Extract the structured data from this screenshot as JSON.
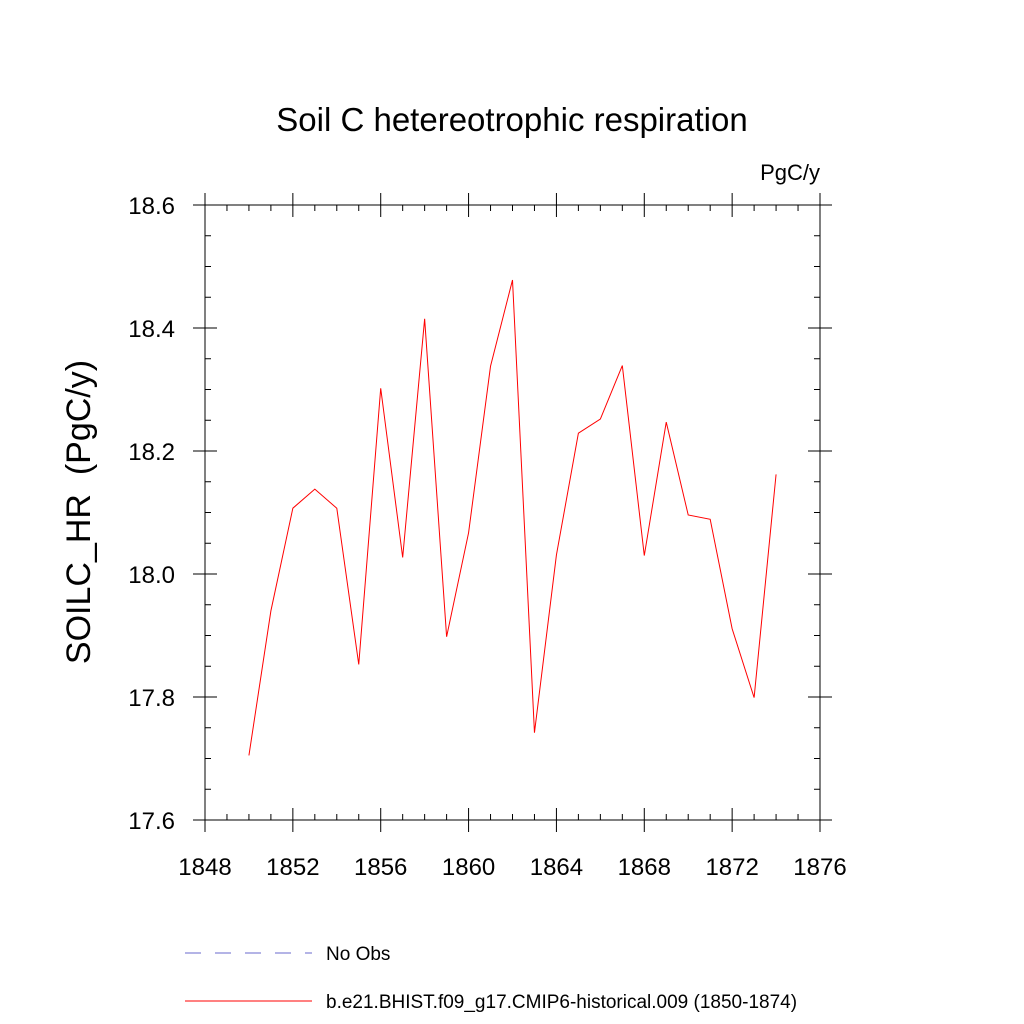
{
  "chart_data": {
    "type": "line",
    "title": "Soil C hetereotrophic respiration",
    "units": "PgC/y",
    "xlabel": "",
    "ylabel": "SOILC_HR  (PgC/y)",
    "xlim": [
      1848,
      1876
    ],
    "ylim": [
      17.6,
      18.6
    ],
    "x_ticks": [
      1848,
      1852,
      1856,
      1860,
      1864,
      1868,
      1872,
      1876
    ],
    "x_tick_labels": [
      "1848",
      "1852",
      "1856",
      "1860",
      "1864",
      "1868",
      "1872",
      "1876"
    ],
    "x_minor_step": 1,
    "y_ticks": [
      17.6,
      17.8,
      18.0,
      18.2,
      18.4,
      18.6
    ],
    "y_tick_labels": [
      "17.6",
      "17.8",
      "18.0",
      "18.2",
      "18.4",
      "18.6"
    ],
    "y_minor_step": 0.05,
    "grid": false,
    "legend_position": "bottom-left",
    "series": [
      {
        "name": "b.e21.BHIST.f09_g17.CMIP6-historical.009 (1850-1874)",
        "color": "#ff0000",
        "style": "solid",
        "x": [
          1850,
          1851,
          1852,
          1853,
          1854,
          1855,
          1856,
          1857,
          1858,
          1859,
          1860,
          1861,
          1862,
          1863,
          1864,
          1865,
          1866,
          1867,
          1868,
          1869,
          1870,
          1871,
          1872,
          1873,
          1874
        ],
        "values": [
          17.705,
          17.94,
          18.107,
          18.138,
          18.107,
          17.853,
          18.302,
          18.027,
          18.415,
          17.898,
          18.067,
          18.338,
          18.478,
          17.742,
          18.031,
          18.229,
          18.252,
          18.339,
          18.03,
          18.247,
          18.096,
          18.089,
          17.911,
          17.799,
          18.162
        ]
      }
    ],
    "legend": [
      {
        "label": "No Obs",
        "color": "#6a6acd",
        "style": "dashed"
      },
      {
        "label": "b.e21.BHIST.f09_g17.CMIP6-historical.009 (1850-1874)",
        "color": "#ff0000",
        "style": "solid"
      }
    ]
  }
}
